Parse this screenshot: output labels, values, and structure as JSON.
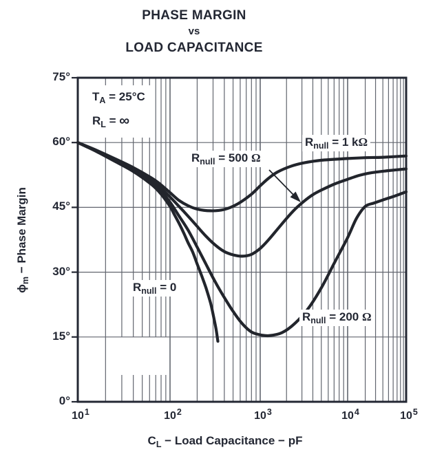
{
  "title": {
    "line1": "PHASE MARGIN",
    "line2": "vs",
    "line3": "LOAD CAPACITANCE"
  },
  "conditions": {
    "line1": {
      "prefix": "T",
      "sub": "A",
      "rest": " = 25°C"
    },
    "line2": {
      "prefix": "R",
      "sub": "L",
      "rest": " = ",
      "symbol": "∞"
    }
  },
  "axes": {
    "y_title": {
      "symbol": "ϕ",
      "sub": "m",
      "rest": " − Phase Margin"
    },
    "x_title": {
      "prefix": "C",
      "sub": "L",
      "rest": " − Load Capacitance − pF"
    },
    "y_tick_labels": [
      "75°",
      "60°",
      "45°",
      "30°",
      "15°",
      "0°"
    ],
    "x_tick_labels": [
      {
        "base": "10",
        "exp": "1"
      },
      {
        "base": "10",
        "exp": "2"
      },
      {
        "base": "10",
        "exp": "3"
      },
      {
        "base": "10",
        "exp": "4"
      },
      {
        "base": "10",
        "exp": "5"
      }
    ]
  },
  "curve_labels": [
    {
      "id": "rnull-500",
      "prefix": "R",
      "sub": "null",
      "rest": " = 500 ",
      "symbol": "Ω"
    },
    {
      "id": "rnull-1k",
      "prefix": "R",
      "sub": "null",
      "rest": " = 1 k",
      "symbol": "Ω"
    },
    {
      "id": "rnull-0",
      "prefix": "R",
      "sub": "null",
      "rest": " = 0",
      "symbol": ""
    },
    {
      "id": "rnull-200",
      "prefix": "R",
      "sub": "null",
      "rest": " = 200 ",
      "symbol": "Ω"
    }
  ],
  "colors": {
    "ink": "#232733",
    "curve": "#22252c",
    "grid": "#61656e",
    "background": "#ffffff"
  },
  "chart_data": {
    "type": "line",
    "title": "PHASE MARGIN vs LOAD CAPACITANCE",
    "xlabel": "CL − Load Capacitance − pF",
    "ylabel": "ϕm − Phase Margin (degrees)",
    "x_axis": {
      "scale": "log",
      "min": 10,
      "max": 100000,
      "unit": "pF",
      "minor_gridlines": true
    },
    "y_axis": {
      "min": 0,
      "max": 75,
      "tick_step": 15,
      "unit": "degrees",
      "gridlines": true
    },
    "conditions": [
      "TA = 25°C",
      "RL = ∞"
    ],
    "legend_position": "inline-curve-labels",
    "series": [
      {
        "name": "Rnull = 0",
        "points_pF_deg": [
          [
            10,
            60
          ],
          [
            16,
            57.9
          ],
          [
            25,
            55.7
          ],
          [
            40,
            53.3
          ],
          [
            63,
            50.3
          ],
          [
            79,
            48.2
          ],
          [
            100,
            45.2
          ],
          [
            112,
            43.3
          ],
          [
            126,
            41.3
          ],
          [
            141,
            39.2
          ],
          [
            158,
            36.9
          ],
          [
            178,
            34.7
          ],
          [
            200,
            31.9
          ],
          [
            224,
            29.2
          ],
          [
            251,
            26.3
          ],
          [
            282,
            22.8
          ],
          [
            302,
            20.0
          ],
          [
            324,
            16.8
          ],
          [
            339,
            14.0
          ]
        ]
      },
      {
        "name": "Rnull = 200 Ω",
        "points_pF_deg": [
          [
            10,
            60
          ],
          [
            16,
            58.0
          ],
          [
            25,
            55.9
          ],
          [
            40,
            53.6
          ],
          [
            63,
            50.8
          ],
          [
            79,
            48.9
          ],
          [
            100,
            46.2
          ],
          [
            126,
            43.0
          ],
          [
            158,
            39.8
          ],
          [
            200,
            35.8
          ],
          [
            251,
            31.8
          ],
          [
            316,
            27.8
          ],
          [
            398,
            24.2
          ],
          [
            501,
            20.9
          ],
          [
            631,
            18.1
          ],
          [
            794,
            16.2
          ],
          [
            1000,
            15.5
          ],
          [
            1259,
            15.3
          ],
          [
            1778,
            16.0
          ],
          [
            2512,
            18.2
          ],
          [
            3548,
            21.6
          ],
          [
            5012,
            26.4
          ],
          [
            7079,
            32.2
          ],
          [
            10000,
            38.0
          ],
          [
            14125,
            42.4
          ],
          [
            19953,
            45.2
          ],
          [
            28184,
            46.0
          ],
          [
            39811,
            46.7
          ],
          [
            63096,
            47.6
          ],
          [
            100000,
            48.6
          ]
        ]
      },
      {
        "name": "Rnull = 500 Ω",
        "points_pF_deg": [
          [
            10,
            60
          ],
          [
            16,
            58.1
          ],
          [
            25,
            56.1
          ],
          [
            40,
            53.9
          ],
          [
            63,
            51.3
          ],
          [
            79,
            49.5
          ],
          [
            100,
            47.4
          ],
          [
            126,
            45.2
          ],
          [
            158,
            43.0
          ],
          [
            200,
            40.6
          ],
          [
            251,
            38.3
          ],
          [
            316,
            36.3
          ],
          [
            398,
            34.8
          ],
          [
            501,
            34.0
          ],
          [
            631,
            33.7
          ],
          [
            794,
            34.1
          ],
          [
            1000,
            35.5
          ],
          [
            1259,
            37.6
          ],
          [
            1585,
            40.0
          ],
          [
            1995,
            42.4
          ],
          [
            2512,
            44.6
          ],
          [
            3162,
            46.4
          ],
          [
            3981,
            47.9
          ],
          [
            5012,
            49.0
          ],
          [
            7079,
            50.4
          ],
          [
            10000,
            51.5
          ],
          [
            15849,
            52.4
          ],
          [
            25119,
            53.0
          ],
          [
            50119,
            53.5
          ],
          [
            100000,
            53.9
          ]
        ]
      },
      {
        "name": "Rnull = 1 kΩ",
        "points_pF_deg": [
          [
            10,
            60
          ],
          [
            16,
            58.2
          ],
          [
            25,
            56.3
          ],
          [
            40,
            54.2
          ],
          [
            63,
            51.8
          ],
          [
            79,
            50.3
          ],
          [
            100,
            48.4
          ],
          [
            126,
            46.6
          ],
          [
            158,
            45.4
          ],
          [
            200,
            44.6
          ],
          [
            282,
            44.2
          ],
          [
            398,
            44.5
          ],
          [
            562,
            45.8
          ],
          [
            794,
            48.0
          ],
          [
            1000,
            50.0
          ],
          [
            1259,
            51.8
          ],
          [
            1585,
            53.2
          ],
          [
            2239,
            54.5
          ],
          [
            3162,
            55.3
          ],
          [
            5012,
            55.9
          ],
          [
            10000,
            56.3
          ],
          [
            20000,
            56.5
          ],
          [
            40000,
            56.6
          ],
          [
            100000,
            56.9
          ]
        ]
      }
    ],
    "annotation_arrow": {
      "note": "arrow from Rnull = 500 Ω label to its curve"
    }
  }
}
